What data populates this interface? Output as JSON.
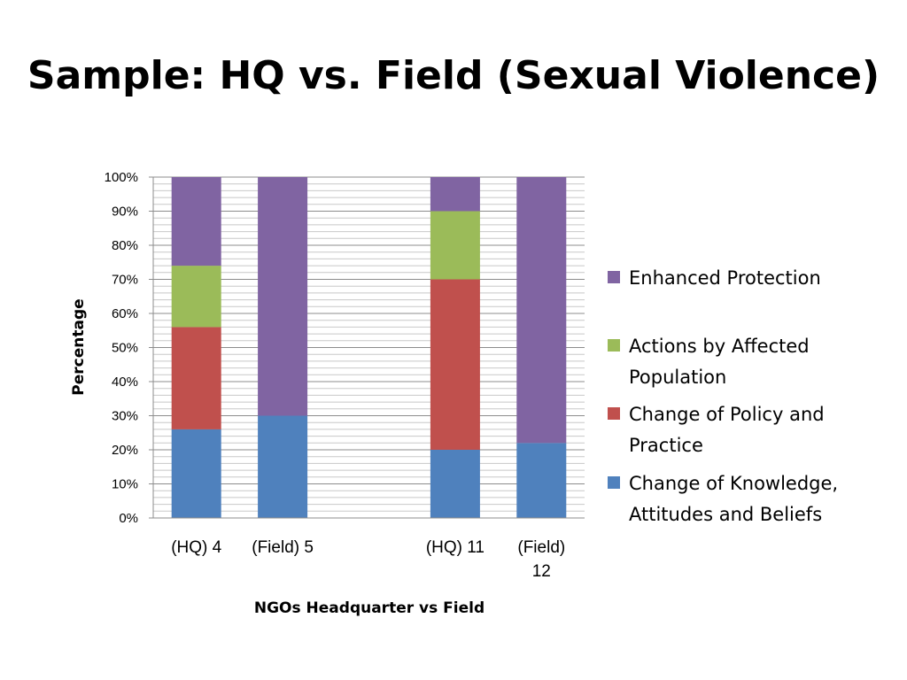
{
  "slide": {
    "title": "Sample: HQ vs. Field (Sexual Violence)"
  },
  "chart_data": {
    "type": "bar",
    "stacked": true,
    "percent": true,
    "title": "",
    "xlabel": "NGOs Headquarter vs Field",
    "ylabel": "Percentage",
    "ylim": [
      0,
      100
    ],
    "yticks": [
      "0%",
      "10%",
      "20%",
      "30%",
      "40%",
      "50%",
      "60%",
      "70%",
      "80%",
      "90%",
      "100%"
    ],
    "categories": [
      [
        "(HQ) 4"
      ],
      [
        "(Field) 5"
      ],
      [],
      [
        "(HQ) 11"
      ],
      [
        "(Field)",
        "12"
      ]
    ],
    "series": [
      {
        "name": "Change of Knowledge, Attitudes and Beliefs",
        "legend_lines": [
          "Change of Knowledge,",
          "Attitudes and Beliefs"
        ],
        "color": "#4f81bd",
        "values": [
          26,
          30,
          0,
          20,
          22
        ]
      },
      {
        "name": "Change of Policy and Practice",
        "legend_lines": [
          "Change of Policy and",
          "Practice"
        ],
        "color": "#c0504d",
        "values": [
          30,
          0,
          0,
          50,
          0
        ]
      },
      {
        "name": "Actions by Affected Population",
        "legend_lines": [
          "Actions by Affected",
          "Population"
        ],
        "color": "#9bbb59",
        "values": [
          18,
          0,
          0,
          20,
          0
        ]
      },
      {
        "name": "Enhanced Protection",
        "legend_lines": [
          "Enhanced Protection"
        ],
        "color": "#8064a2",
        "values": [
          26,
          70,
          0,
          10,
          78
        ]
      }
    ],
    "legend_position": "right",
    "grid": true
  }
}
